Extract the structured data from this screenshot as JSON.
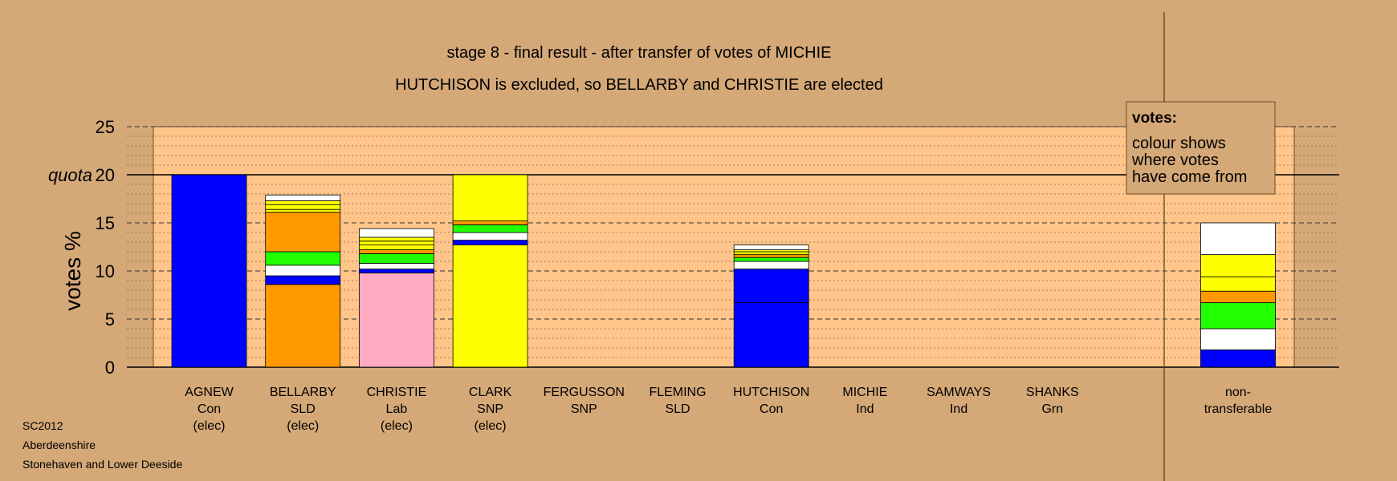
{
  "chart_data": {
    "type": "bar",
    "stacked": true,
    "title": "stage 8 - final result - after transfer of votes of MICHIE",
    "subtitle": "HUTCHISON is excluded, so BELLARBY and CHRISTIE are elected",
    "ylabel": "votes %",
    "ylim": [
      0,
      25
    ],
    "yticks": [
      0,
      5,
      10,
      15,
      20,
      25
    ],
    "quota_label": "quota",
    "quota_value": 20,
    "grid": true,
    "legend_position": "top-right",
    "legend_title": "votes:",
    "legend_lines": [
      "colour shows",
      "where votes",
      "have come from"
    ],
    "colors": {
      "Con": "#0000FF",
      "SLD": "#FF9900",
      "Lab": "#FFAAC0",
      "SNP": "#FFFF00",
      "Grn": "#22FF00",
      "Ind": "#FFFFFF",
      "background": "#D4A877",
      "plot_band": "#FFC58A"
    },
    "candidates": [
      {
        "name": "AGNEW",
        "party": "Con",
        "status": "(elec)",
        "segments": [
          {
            "source": "Con",
            "value": 20
          }
        ]
      },
      {
        "name": "BELLARBY",
        "party": "SLD",
        "status": "(elec)",
        "segments": [
          {
            "source": "SLD",
            "value": 8.6
          },
          {
            "source": "Con",
            "value": 0.9
          },
          {
            "source": "Ind",
            "value": 1.1
          },
          {
            "source": "Grn",
            "value": 1.4
          },
          {
            "source": "SLD",
            "value": 4.1
          },
          {
            "source": "SNP",
            "value": 0.3
          },
          {
            "source": "SNP",
            "value": 0.5
          },
          {
            "source": "SNP",
            "value": 0.4
          },
          {
            "source": "Ind",
            "value": 0.6
          }
        ]
      },
      {
        "name": "CHRISTIE",
        "party": "Lab",
        "status": "(elec)",
        "segments": [
          {
            "source": "Lab",
            "value": 9.8
          },
          {
            "source": "Con",
            "value": 0.4
          },
          {
            "source": "Ind",
            "value": 0.6
          },
          {
            "source": "Grn",
            "value": 1.0
          },
          {
            "source": "SLD",
            "value": 0.4
          },
          {
            "source": "SNP",
            "value": 0.5
          },
          {
            "source": "SNP",
            "value": 0.4
          },
          {
            "source": "SNP",
            "value": 0.4
          },
          {
            "source": "Ind",
            "value": 0.9
          }
        ]
      },
      {
        "name": "CLARK",
        "party": "SNP",
        "status": "(elec)",
        "segments": [
          {
            "source": "SNP",
            "value": 12.7
          },
          {
            "source": "Con",
            "value": 0.5
          },
          {
            "source": "Ind",
            "value": 0.8
          },
          {
            "source": "Grn",
            "value": 0.8
          },
          {
            "source": "SLD",
            "value": 0.4
          },
          {
            "source": "SNP",
            "value": 4.8
          }
        ]
      },
      {
        "name": "FERGUSSON",
        "party": "SNP",
        "status": "",
        "segments": []
      },
      {
        "name": "FLEMING",
        "party": "SLD",
        "status": "",
        "segments": []
      },
      {
        "name": "HUTCHISON",
        "party": "Con",
        "status": "",
        "segments": [
          {
            "source": "Con",
            "value": 6.7
          },
          {
            "source": "Con",
            "value": 3.5
          },
          {
            "source": "Ind",
            "value": 0.8
          },
          {
            "source": "Grn",
            "value": 0.4
          },
          {
            "source": "SLD",
            "value": 0.3
          },
          {
            "source": "SNP",
            "value": 0.3
          },
          {
            "source": "SNP",
            "value": 0.2
          },
          {
            "source": "Ind",
            "value": 0.5
          }
        ]
      },
      {
        "name": "MICHIE",
        "party": "Ind",
        "status": "",
        "segments": []
      },
      {
        "name": "SAMWAYS",
        "party": "Ind",
        "status": "",
        "segments": []
      },
      {
        "name": "SHANKS",
        "party": "Grn",
        "status": "",
        "segments": []
      }
    ],
    "nontransferable": {
      "label_lines": [
        "non-",
        "transferable"
      ],
      "segments": [
        {
          "source": "Con",
          "value": 1.8
        },
        {
          "source": "Ind",
          "value": 2.2
        },
        {
          "source": "Grn",
          "value": 2.7
        },
        {
          "source": "SLD",
          "value": 1.2
        },
        {
          "source": "SNP",
          "value": 1.5
        },
        {
          "source": "SNP",
          "value": 2.3
        },
        {
          "source": "Ind",
          "value": 3.3
        }
      ]
    }
  },
  "footer": {
    "line1": "SC2012",
    "line2": "Aberdeenshire",
    "line3": "Stonehaven and Lower Deeside"
  }
}
